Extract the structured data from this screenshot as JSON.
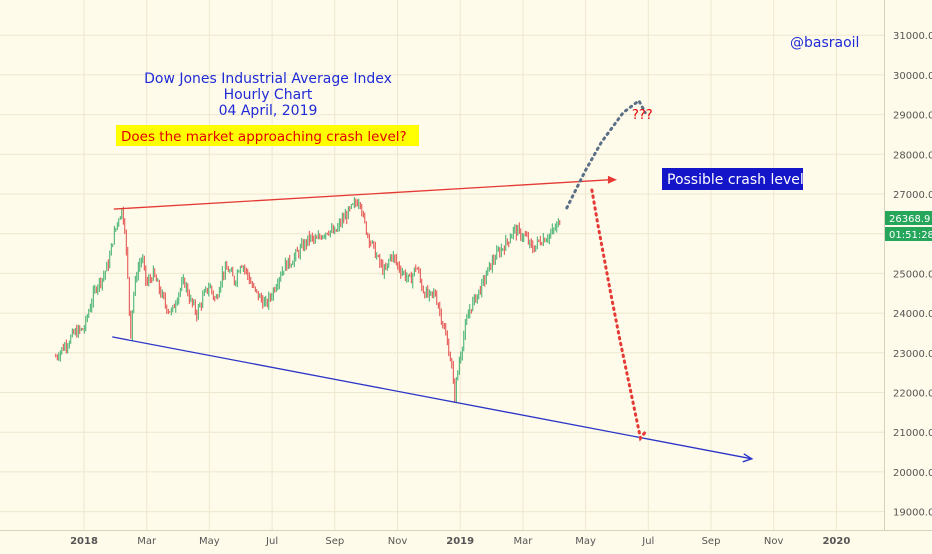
{
  "chart_data": {
    "type": "candlestick",
    "title_lines": [
      "Dow Jones Industrial Average Index",
      "Hourly Chart",
      "04 April, 2019"
    ],
    "question": "Does the market approaching crash level?",
    "watermark": "@basraoil",
    "callout": "Possible crash level",
    "question_marks": "???",
    "price_label": "26368.9",
    "countdown_label": "01:51:28",
    "y_ticks": [
      "31000.0",
      "30000.0",
      "29000.0",
      "28000.0",
      "27000.0",
      "26000.0",
      "25000.0",
      "24000.0",
      "23000.0",
      "22000.0",
      "21000.0",
      "20000.0",
      "19000.0"
    ],
    "y_tick_values": [
      31000,
      30000,
      29000,
      28000,
      27000,
      26000,
      25000,
      24000,
      23000,
      22000,
      21000,
      20000,
      19000
    ],
    "x_ticks": [
      "2018",
      "Mar",
      "May",
      "Jul",
      "Sep",
      "Nov",
      "2019",
      "Mar",
      "May",
      "Jul",
      "Sep",
      "Nov",
      "2020"
    ],
    "x_tick_bold": [
      true,
      false,
      false,
      false,
      false,
      false,
      true,
      false,
      false,
      false,
      false,
      false,
      true
    ],
    "x_tick_months": [
      0,
      2,
      4,
      6,
      8,
      10,
      12,
      14,
      16,
      18,
      20,
      22,
      24
    ],
    "price_path": [
      [
        -0.9,
        22900
      ],
      [
        -0.6,
        23200
      ],
      [
        -0.3,
        23500
      ],
      [
        0.0,
        23600
      ],
      [
        0.2,
        24200
      ],
      [
        0.4,
        24700
      ],
      [
        0.6,
        24900
      ],
      [
        0.8,
        25300
      ],
      [
        0.9,
        25800
      ],
      [
        1.0,
        26100
      ],
      [
        1.1,
        26400
      ],
      [
        1.2,
        26600
      ],
      [
        1.3,
        26200
      ],
      [
        1.35,
        25500
      ],
      [
        1.4,
        24800
      ],
      [
        1.45,
        24000
      ],
      [
        1.5,
        23400
      ],
      [
        1.55,
        24300
      ],
      [
        1.7,
        25100
      ],
      [
        1.85,
        25400
      ],
      [
        2.0,
        24700
      ],
      [
        2.2,
        25000
      ],
      [
        2.4,
        24600
      ],
      [
        2.6,
        24200
      ],
      [
        2.8,
        24000
      ],
      [
        3.0,
        24500
      ],
      [
        3.2,
        24800
      ],
      [
        3.4,
        24300
      ],
      [
        3.6,
        24000
      ],
      [
        3.8,
        24400
      ],
      [
        4.0,
        24700
      ],
      [
        4.2,
        24300
      ],
      [
        4.4,
        25000
      ],
      [
        4.6,
        25100
      ],
      [
        4.8,
        24800
      ],
      [
        5.0,
        25300
      ],
      [
        5.2,
        25000
      ],
      [
        5.4,
        24600
      ],
      [
        5.6,
        24400
      ],
      [
        5.8,
        24200
      ],
      [
        6.0,
        24500
      ],
      [
        6.2,
        24900
      ],
      [
        6.4,
        25200
      ],
      [
        6.6,
        25300
      ],
      [
        6.8,
        25500
      ],
      [
        7.0,
        25700
      ],
      [
        7.2,
        25900
      ],
      [
        7.4,
        25800
      ],
      [
        7.6,
        26000
      ],
      [
        7.8,
        26100
      ],
      [
        8.0,
        26000
      ],
      [
        8.2,
        26300
      ],
      [
        8.4,
        26500
      ],
      [
        8.6,
        26700
      ],
      [
        8.8,
        26900
      ],
      [
        8.9,
        26400
      ],
      [
        9.0,
        26100
      ],
      [
        9.2,
        25700
      ],
      [
        9.4,
        25300
      ],
      [
        9.6,
        25000
      ],
      [
        9.8,
        25500
      ],
      [
        10.0,
        25200
      ],
      [
        10.2,
        25000
      ],
      [
        10.4,
        24800
      ],
      [
        10.6,
        25200
      ],
      [
        10.8,
        24600
      ],
      [
        11.0,
        24400
      ],
      [
        11.2,
        24500
      ],
      [
        11.4,
        23900
      ],
      [
        11.6,
        23200
      ],
      [
        11.75,
        22600
      ],
      [
        11.8,
        21800
      ],
      [
        11.95,
        22700
      ],
      [
        12.1,
        23400
      ],
      [
        12.3,
        24100
      ],
      [
        12.5,
        24400
      ],
      [
        12.7,
        24700
      ],
      [
        12.9,
        25100
      ],
      [
        13.1,
        25400
      ],
      [
        13.3,
        25600
      ],
      [
        13.5,
        25800
      ],
      [
        13.7,
        26100
      ],
      [
        13.9,
        26000
      ],
      [
        14.1,
        25900
      ],
      [
        14.3,
        25600
      ],
      [
        14.5,
        25800
      ],
      [
        14.7,
        25900
      ],
      [
        14.9,
        26000
      ],
      [
        15.1,
        26200
      ],
      [
        15.2,
        26400
      ]
    ],
    "resistance_line": {
      "start": [
        0.95,
        26620
      ],
      "end": [
        17.0,
        27360
      ]
    },
    "support_line": {
      "start": [
        0.9,
        23400
      ],
      "end": [
        21.3,
        20330
      ]
    },
    "bull_projection": [
      [
        15.4,
        26650
      ],
      [
        16.0,
        27600
      ],
      [
        16.5,
        28300
      ],
      [
        17.2,
        29050
      ],
      [
        17.7,
        29350
      ],
      [
        17.9,
        29050
      ]
    ],
    "crash_projection": [
      [
        16.2,
        27100
      ],
      [
        16.4,
        26200
      ],
      [
        16.8,
        24500
      ],
      [
        17.1,
        23300
      ],
      [
        17.5,
        21800
      ],
      [
        17.75,
        20850
      ],
      [
        17.95,
        21050
      ]
    ]
  },
  "colors": {
    "background": "#fffbea",
    "grid": "#eee7cf",
    "candle_up": "#26a65b",
    "candle_down": "#e03434",
    "resistance": "#e53935",
    "support": "#2a35c8",
    "bull_dots": "#5b6f86",
    "crash_dots": "#e53935",
    "title": "#1f2bd6",
    "question_bg": "#ffff00",
    "question_text": "#e00000",
    "callout_bg": "#1414c8",
    "callout_text": "#ffffff",
    "price_bg": "#26a65b",
    "axis_text": "#555555"
  }
}
